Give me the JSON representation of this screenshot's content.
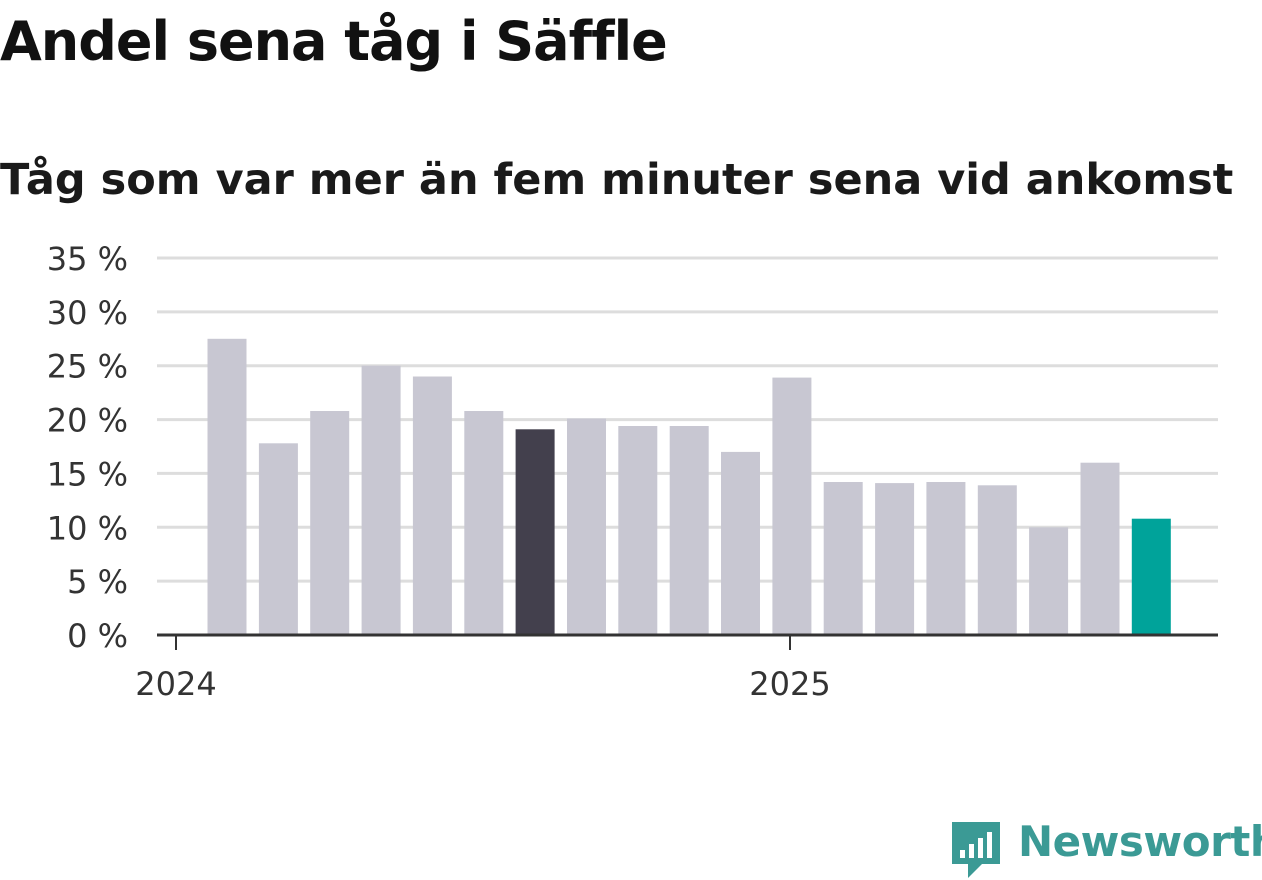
{
  "title": "Andel sena tåg i Säffle",
  "subtitle": "Tåg som var mer än fem minuter sena vid ankomst",
  "brand": {
    "name": "Newsworthy",
    "color": "#3b9a95",
    "icon": "newsworthy-logo-icon"
  },
  "colors": {
    "bar": "#c8c7d2",
    "highlight_dark": "#43404d",
    "highlight_teal": "#00a39a",
    "grid": "#dddddd",
    "axis": "#333333"
  },
  "chart_data": {
    "type": "bar",
    "title": "Andel sena tåg i Säffle",
    "subtitle": "Tåg som var mer än fem minuter sena vid ankomst",
    "x_tick_labels": [
      "2024",
      "2025"
    ],
    "y_ticks": [
      "0 %",
      "5 %",
      "10 %",
      "15 %",
      "20 %",
      "25 %",
      "30 %",
      "35 %"
    ],
    "ylim": [
      0,
      35
    ],
    "grid": true,
    "unit": "%",
    "values": [
      27.5,
      17.8,
      20.8,
      25.0,
      24.0,
      20.8,
      19.1,
      20.1,
      19.4,
      19.4,
      17.0,
      23.9,
      14.2,
      14.1,
      14.2,
      13.9,
      10.0,
      16.0,
      10.8
    ],
    "highlights": {
      "6": "dark",
      "18": "teal"
    }
  }
}
